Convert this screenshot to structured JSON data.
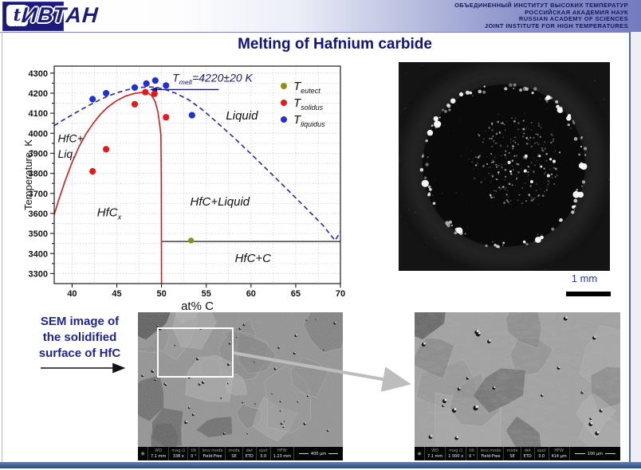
{
  "header": {
    "logo": {
      "mark": "t",
      "wordmark": "ИВТАН"
    },
    "institute_lines": [
      "ОБЪЕДИНЕННЫЙ  ИНСТИТУТ  ВЫСОКИХ  ТЕМПЕРАТУР",
      "РОССИЙСКАЯ АКАДЕМИЯ НАУК",
      "RUSSIAN  ACADEMY  OF  SCIENCES",
      "JOINT INSTITUTE  FOR  HIGH  TEMPERATURES"
    ]
  },
  "title": "Melting of Hafnium carbide",
  "melt_image": {
    "scale_label": "1 mm"
  },
  "sem_caption": {
    "lines": [
      "SEM image of",
      "the solidified",
      "surface of HfC"
    ]
  },
  "sem_images": [
    {
      "id": "overview",
      "info_cells": [
        [
          "WD",
          "7.1 mm"
        ],
        [
          "mag ⊡",
          "338 x"
        ],
        [
          "tilt",
          "0 °"
        ],
        [
          "lens mode",
          "Field-Free"
        ],
        [
          "mode",
          "SE"
        ],
        [
          "det",
          "ETD"
        ],
        [
          "spot",
          "3.0"
        ],
        [
          "HFW",
          "1.23 mm"
        ]
      ],
      "scale_label": "400 µm"
    },
    {
      "id": "zoom",
      "info_cells": [
        [
          "WD",
          "7.1 mm"
        ],
        [
          "mag ⊡",
          "1 000 x"
        ],
        [
          "tilt",
          "0 °"
        ],
        [
          "lens mode",
          "Field-Free"
        ],
        [
          "mode",
          "SE"
        ],
        [
          "det",
          "ETD"
        ],
        [
          "spot",
          "3.0"
        ],
        [
          "HFW",
          "414 µm"
        ]
      ],
      "scale_label": "100 µm"
    }
  ],
  "chart_data": {
    "type": "scatter",
    "xlabel": "at% C",
    "ylabel": "Temperature, K",
    "xlim": [
      38,
      70
    ],
    "ylim": [
      3250,
      4335
    ],
    "x_ticks": [
      40,
      45,
      50,
      55,
      60,
      65,
      70
    ],
    "y_ticks": [
      3300,
      3400,
      3500,
      3600,
      3700,
      3800,
      3900,
      4000,
      4100,
      4200,
      4300
    ],
    "x_minor_grid_step": 2.5,
    "y_minor_grid_step": 50,
    "grid": true,
    "legend_position": "upper right",
    "legend": [
      {
        "main": "T",
        "sub": "eutect",
        "color": "#8f8f12"
      },
      {
        "main": "T",
        "sub": "solidus",
        "color": "#e31a1a"
      },
      {
        "main": "T",
        "sub": "liquidus",
        "color": "#2230cf"
      }
    ],
    "series": [
      {
        "name": "T_eutect",
        "color": "#8f8f12",
        "size": 3.6,
        "points": [
          [
            53.3,
            3465
          ]
        ]
      },
      {
        "name": "T_solidus",
        "color": "#e31a1a",
        "size": 4.1,
        "points": [
          [
            42.3,
            3810
          ],
          [
            43.8,
            3920
          ],
          [
            47.0,
            4145
          ],
          [
            48.2,
            4205
          ],
          [
            49.2,
            4197
          ],
          [
            50.5,
            4080
          ]
        ]
      },
      {
        "name": "T_liquidus",
        "color": "#2230cf",
        "size": 4.1,
        "points": [
          [
            42.3,
            4170
          ],
          [
            43.8,
            4200
          ],
          [
            47.0,
            4228
          ],
          [
            48.3,
            4248
          ],
          [
            49.3,
            4263
          ],
          [
            50.5,
            4238
          ],
          [
            53.4,
            4090
          ]
        ]
      }
    ],
    "curves": [
      {
        "name": "solidus-boundary",
        "color": "#cf1d1d",
        "dash": null,
        "points": [
          [
            38,
            3595
          ],
          [
            38.6,
            3680
          ],
          [
            39.2,
            3760
          ],
          [
            40,
            3855
          ],
          [
            40.8,
            3935
          ],
          [
            41.6,
            4000
          ],
          [
            42.4,
            4052
          ],
          [
            43.2,
            4096
          ],
          [
            44,
            4131
          ],
          [
            45,
            4163
          ],
          [
            46,
            4186
          ],
          [
            47,
            4199
          ],
          [
            47.8,
            4204
          ],
          [
            48.4,
            4202
          ],
          [
            48.9,
            4188
          ],
          [
            49.3,
            4156
          ],
          [
            49.6,
            4106
          ],
          [
            49.8,
            4040
          ],
          [
            49.93,
            3992
          ],
          [
            49.97,
            3800
          ],
          [
            50,
            3250
          ]
        ]
      },
      {
        "name": "liquidus-boundary",
        "color": "#2527b4",
        "dash": "6 4",
        "points": [
          [
            38,
            4038
          ],
          [
            39,
            4066
          ],
          [
            40,
            4092
          ],
          [
            41,
            4118
          ],
          [
            42,
            4142
          ],
          [
            43,
            4165
          ],
          [
            44,
            4185
          ],
          [
            45,
            4202
          ],
          [
            46,
            4215
          ],
          [
            47,
            4225
          ],
          [
            48,
            4230
          ],
          [
            48.8,
            4231
          ],
          [
            49.6,
            4227
          ],
          [
            50.5,
            4217
          ],
          [
            51.5,
            4201
          ],
          [
            53,
            4168
          ],
          [
            54.5,
            4120
          ],
          [
            56,
            4062
          ],
          [
            58,
            3982
          ],
          [
            60,
            3897
          ],
          [
            62,
            3810
          ],
          [
            64,
            3722
          ],
          [
            66,
            3633
          ],
          [
            68,
            3543
          ],
          [
            69.4,
            3465
          ],
          [
            70,
            3508
          ]
        ]
      }
    ],
    "hlines": [
      {
        "name": "eutectic-line",
        "color": "#1a1a1a",
        "y": 3460,
        "x1": 50,
        "x2": 70,
        "width": 1.2
      },
      {
        "name": "tmelt-line",
        "color": "#16166e",
        "y": 4218,
        "x1": 48.8,
        "x2": 56.4,
        "width": 1.4,
        "arrow": "left"
      }
    ],
    "annotations": [
      {
        "name": "tmelt-label",
        "x": 51.2,
        "y": 4258,
        "color": "#16167a",
        "italic": true,
        "size": 14,
        "parts": [
          {
            "t": "T"
          },
          {
            "sub": "melt"
          },
          {
            "t": "=4220±20 K"
          }
        ]
      },
      {
        "name": "region-liquid",
        "x": 57.2,
        "y": 4068,
        "color": "#111111",
        "italic": true,
        "size": 15,
        "parts": [
          {
            "t": "Liquid"
          }
        ]
      },
      {
        "name": "region-hfc-liq-line1",
        "x": 38.4,
        "y": 3955,
        "color": "#111111",
        "italic": true,
        "size": 14,
        "parts": [
          {
            "t": "HfC+"
          }
        ]
      },
      {
        "name": "region-hfc-liq-line2",
        "x": 38.4,
        "y": 3878,
        "color": "#111111",
        "italic": true,
        "size": 14,
        "parts": [
          {
            "t": "Liq."
          }
        ]
      },
      {
        "name": "region-hfcx",
        "x": 42.8,
        "y": 3585,
        "color": "#111111",
        "italic": true,
        "size": 15,
        "parts": [
          {
            "t": "HfC"
          },
          {
            "sub": "x"
          }
        ]
      },
      {
        "name": "region-hfc-liquid",
        "x": 53.2,
        "y": 3640,
        "color": "#111111",
        "italic": true,
        "size": 15,
        "parts": [
          {
            "t": "HfC+Liquid"
          }
        ]
      },
      {
        "name": "region-hfc-c",
        "x": 58.2,
        "y": 3358,
        "color": "#111111",
        "italic": true,
        "size": 15,
        "parts": [
          {
            "t": "HfC+C"
          }
        ]
      }
    ]
  }
}
